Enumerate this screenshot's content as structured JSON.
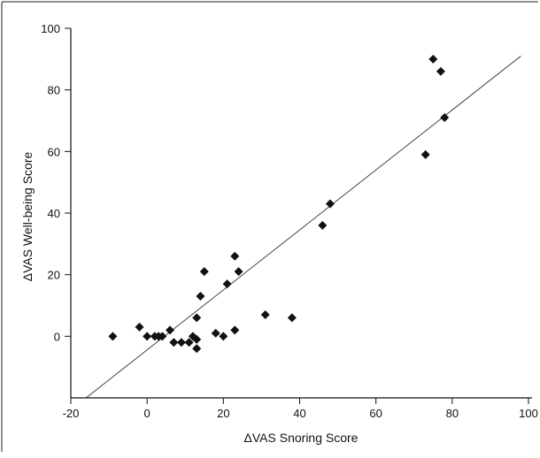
{
  "chart_data": {
    "type": "scatter",
    "title": "",
    "xlabel": "ΔVAS Snoring Score",
    "ylabel": "ΔVAS Well-being Score",
    "xlim": [
      -20,
      100
    ],
    "ylim": [
      -20,
      100
    ],
    "x_ticks": [
      -20,
      0,
      20,
      40,
      60,
      80,
      100
    ],
    "y_ticks": [
      0,
      20,
      40,
      60,
      80,
      100
    ],
    "x_tick_labels": [
      "-20",
      "0",
      "20",
      "40",
      "60",
      "80",
      "100"
    ],
    "y_tick_labels": [
      "0",
      "20",
      "40",
      "60",
      "80",
      "100"
    ],
    "grid": false,
    "legend": "none",
    "marker": "diamond",
    "marker_color": "#111111",
    "points": [
      {
        "x": -9,
        "y": 0
      },
      {
        "x": -2,
        "y": 3
      },
      {
        "x": 0,
        "y": 0
      },
      {
        "x": 2,
        "y": 0
      },
      {
        "x": 3,
        "y": 0
      },
      {
        "x": 4,
        "y": 0
      },
      {
        "x": 6,
        "y": 2
      },
      {
        "x": 7,
        "y": -2
      },
      {
        "x": 9,
        "y": -2
      },
      {
        "x": 11,
        "y": -2
      },
      {
        "x": 12,
        "y": 0
      },
      {
        "x": 13,
        "y": -1
      },
      {
        "x": 13,
        "y": -4
      },
      {
        "x": 13,
        "y": 6
      },
      {
        "x": 14,
        "y": 13
      },
      {
        "x": 15,
        "y": 21
      },
      {
        "x": 18,
        "y": 1
      },
      {
        "x": 20,
        "y": 0
      },
      {
        "x": 21,
        "y": 17
      },
      {
        "x": 23,
        "y": 26
      },
      {
        "x": 23,
        "y": 2
      },
      {
        "x": 24,
        "y": 21
      },
      {
        "x": 31,
        "y": 7
      },
      {
        "x": 38,
        "y": 6
      },
      {
        "x": 46,
        "y": 36
      },
      {
        "x": 48,
        "y": 43
      },
      {
        "x": 73,
        "y": 59
      },
      {
        "x": 75,
        "y": 90
      },
      {
        "x": 77,
        "y": 86
      },
      {
        "x": 78,
        "y": 71
      }
    ],
    "regression_line": {
      "x": [
        -16,
        98
      ],
      "y": [
        -20,
        91
      ]
    }
  }
}
